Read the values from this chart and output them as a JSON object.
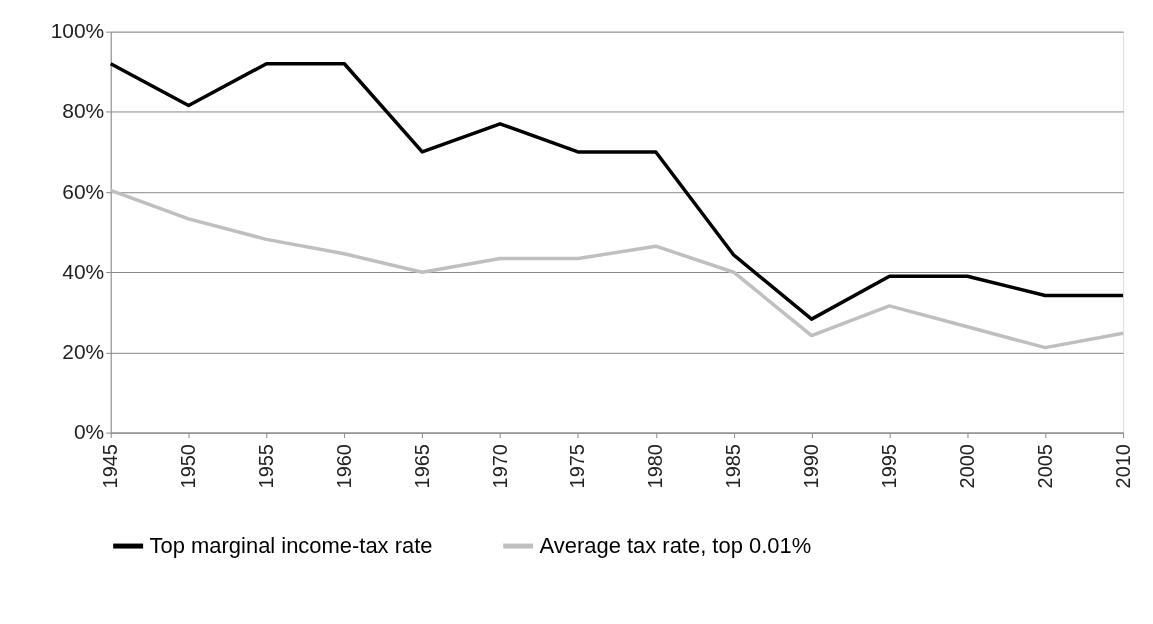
{
  "chart_data": {
    "type": "line",
    "categories": [
      "1945",
      "1950",
      "1955",
      "1960",
      "1965",
      "1970",
      "1975",
      "1980",
      "1985",
      "1990",
      "1995",
      "2000",
      "2005",
      "2010"
    ],
    "series": [
      {
        "name": "Top marginal income-tax rate",
        "color": "#000000",
        "values": [
          92,
          81.6,
          92,
          92,
          70,
          77,
          70,
          70,
          44.3,
          28.3,
          39,
          39,
          34.2,
          34.2
        ]
      },
      {
        "name": "Average tax rate, top 0.01%",
        "color": "#bfbfbf",
        "values": [
          60.4,
          53.3,
          48.2,
          44.6,
          40,
          43.4,
          43.4,
          46.5,
          40,
          24.2,
          31.6,
          26.4,
          21.2,
          24.8
        ]
      }
    ],
    "ylim": [
      0,
      100
    ],
    "yticks": [
      {
        "value": 0,
        "label": "0%"
      },
      {
        "value": 20,
        "label": "20%"
      },
      {
        "value": 40,
        "label": "40%"
      },
      {
        "value": 60,
        "label": "60%"
      },
      {
        "value": 80,
        "label": "80%"
      },
      {
        "value": 100,
        "label": "100%"
      }
    ],
    "grid": "y",
    "legend": "bottom",
    "marker": "none",
    "line_style": "solid"
  }
}
